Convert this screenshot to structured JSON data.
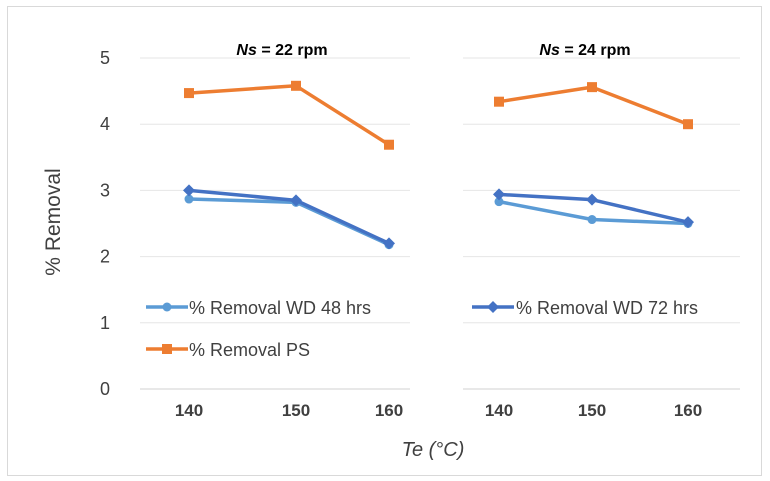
{
  "chart_data": [
    {
      "type": "line",
      "title_var": "Ns",
      "title_rest": " = 22 rpm",
      "categories": [
        "140",
        "150",
        "160"
      ],
      "ylim": [
        0,
        5
      ],
      "yticks": [
        "0",
        "1",
        "2",
        "3",
        "4",
        "5"
      ],
      "grid": true,
      "series": [
        {
          "name": "% Removal WD 48 hrs",
          "color": "#5b9bd5",
          "marker": "circle",
          "values": [
            2.87,
            2.82,
            2.18
          ]
        },
        {
          "name": "% Removal WD 72 hrs",
          "color": "#4472c4",
          "marker": "diamond",
          "values": [
            3.0,
            2.85,
            2.2
          ]
        },
        {
          "name": "% Removal PS",
          "color": "#ed7d31",
          "marker": "square",
          "values": [
            4.47,
            4.58,
            3.69
          ]
        }
      ]
    },
    {
      "type": "line",
      "title_var": "Ns",
      "title_rest": " = 24 rpm",
      "categories": [
        "140",
        "150",
        "160"
      ],
      "ylim": [
        0,
        5
      ],
      "grid": true,
      "series": [
        {
          "name": "% Removal WD 48 hrs",
          "color": "#5b9bd5",
          "marker": "circle",
          "values": [
            2.83,
            2.56,
            2.5
          ]
        },
        {
          "name": "% Removal WD 72 hrs",
          "color": "#4472c4",
          "marker": "diamond",
          "values": [
            2.94,
            2.86,
            2.52
          ]
        },
        {
          "name": "% Removal PS",
          "color": "#ed7d31",
          "marker": "square",
          "values": [
            4.34,
            4.56,
            4.0
          ]
        }
      ]
    }
  ],
  "ylabel": "% Removal",
  "xlabel": "Te (°C)",
  "legend": {
    "placement": "lower-center",
    "items": [
      "% Removal WD 48 hrs",
      "% Removal WD 72 hrs",
      "% Removal PS"
    ]
  }
}
